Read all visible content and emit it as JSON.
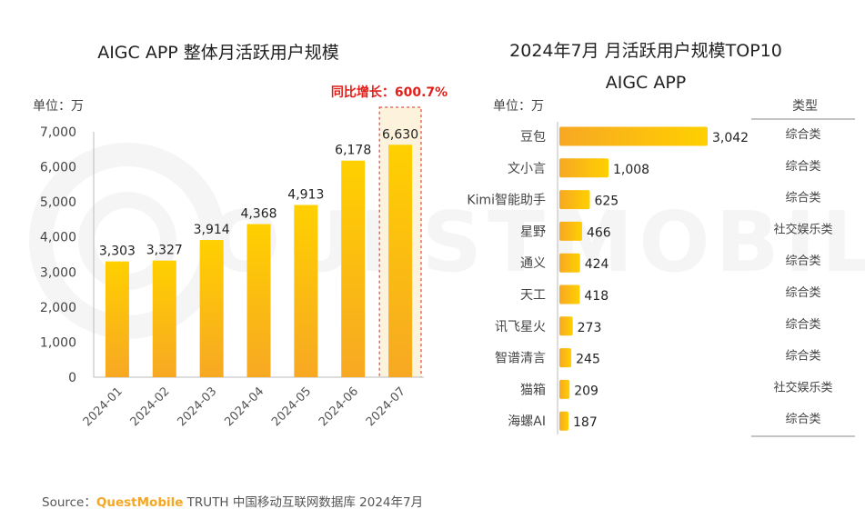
{
  "left_chart": {
    "title": "AIGC APP 整体月活跃用户规模",
    "unit": "单位：万",
    "annotation": "同比增长：600.7%",
    "chart_data": {
      "type": "bar",
      "categories": [
        "2024-01",
        "2024-02",
        "2024-03",
        "2024-04",
        "2024-05",
        "2024-06",
        "2024-07"
      ],
      "values": [
        3303,
        3327,
        3914,
        4368,
        4913,
        6178,
        6630
      ],
      "value_labels": [
        "3,303",
        "3,327",
        "3,914",
        "4,368",
        "4,913",
        "6,178",
        "6,630"
      ],
      "yticks": [
        "0",
        "1,000",
        "2,000",
        "3,000",
        "4,000",
        "5,000",
        "6,000",
        "7,000"
      ],
      "ylim": [
        0,
        7000
      ],
      "grid": false,
      "highlight_category": "2024-07"
    }
  },
  "right_chart": {
    "title_line1": "2024年7月 月活跃用户规模TOP10",
    "title_line2": "AIGC APP",
    "unit": "单位：万",
    "type_header": "类型",
    "chart_data": {
      "type": "bar",
      "orientation": "horizontal",
      "categories": [
        "豆包",
        "文小言",
        "Kimi智能助手",
        "星野",
        "通义",
        "天工",
        "讯飞星火",
        "智谱清言",
        "猫箱",
        "海螺AI"
      ],
      "values": [
        3042,
        1008,
        625,
        466,
        424,
        418,
        273,
        245,
        209,
        187
      ],
      "value_labels": [
        "3,042",
        "1,008",
        "625",
        "466",
        "424",
        "418",
        "273",
        "245",
        "209",
        "187"
      ],
      "types": [
        "综合类",
        "综合类",
        "综合类",
        "社交娱乐类",
        "综合类",
        "综合类",
        "综合类",
        "综合类",
        "社交娱乐类",
        "综合类"
      ]
    }
  },
  "watermark": "QUESTMOBILE",
  "footer": {
    "prefix": "Source：",
    "brand": "QuestMobile",
    "rest": " TRUTH 中国移动互联网数据库 2024年7月"
  },
  "colors": {
    "bar_top": "#ffd000",
    "bar_bottom": "#f7a823",
    "annotation": "#e0201b",
    "highlight_fill": "#fdf3dc"
  }
}
